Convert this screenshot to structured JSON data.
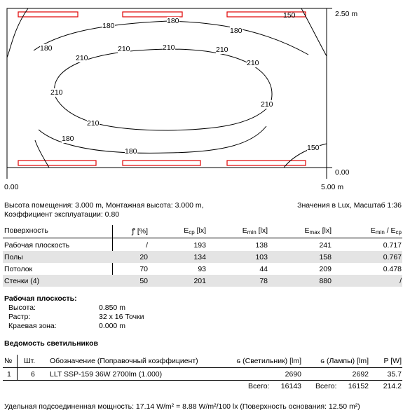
{
  "plan": {
    "axis_x_start": "0.00",
    "axis_x_end": "5.00 m",
    "axis_y_top": "2.50 m",
    "axis_y_bottom": "0.00",
    "contour_labels": [
      "150",
      "180",
      "180",
      "180",
      "180",
      "210",
      "210",
      "210",
      "210",
      "210",
      "210",
      "210",
      "210",
      "180",
      "180",
      "150"
    ]
  },
  "info": {
    "room_line1": "Высота помещения: 3.000 m, Монтажная высота: 3.000 m,",
    "room_line2": "Коэффициент эксплуатации: 0.80",
    "units_note": "Значения в Lux, Масштаб 1:36"
  },
  "surfaces": {
    "headers": {
      "surface": "Поверхность",
      "rho": "ꝭ [%]",
      "eavg": "E",
      "eavg_sub": "ср",
      "eavg_unit": "[lx]",
      "emin": "E",
      "emin_sub": "min",
      "emin_unit": "[lx]",
      "emax": "E",
      "emax_sub": "max",
      "emax_unit": "[lx]",
      "ratio_a": "E",
      "ratio_a_sub": "min",
      "ratio_sep": "/ E",
      "ratio_b_sub": "ср"
    },
    "rows": [
      {
        "name": "Рабочая плоскость",
        "rho": "/",
        "eavg": "193",
        "emin": "138",
        "emax": "241",
        "ratio": "0.717"
      },
      {
        "name": "Полы",
        "rho": "20",
        "eavg": "134",
        "emin": "103",
        "emax": "158",
        "ratio": "0.767"
      },
      {
        "name": "Потолок",
        "rho": "70",
        "eavg": "93",
        "emin": "44",
        "emax": "209",
        "ratio": "0.478"
      },
      {
        "name": "Стенки (4)",
        "rho": "50",
        "eavg": "201",
        "emin": "78",
        "emax": "880",
        "ratio": "/"
      }
    ]
  },
  "workplane": {
    "title": "Рабочая плоскость:",
    "height_label": "Высота:",
    "height_value": "0.850 m",
    "grid_label": "Растр:",
    "grid_value": "32 x 16 Точки",
    "border_label": "Краевая зона:",
    "border_value": "0.000 m"
  },
  "luminaires": {
    "title": "Ведомость светильников",
    "headers": {
      "no": "№",
      "qty": "Шт.",
      "desc": "Обозначение (Поправочный коэффициент)",
      "flux_lum": "ɢ (Светильник) [lm]",
      "flux_lamp": "ɢ (Лампы) [lm]",
      "power": "P [W]"
    },
    "row": {
      "no": "1",
      "qty": "6",
      "desc": "LLT SSP-159 36W 2700lm (1.000)",
      "flux_lum": "2690",
      "flux_lamp": "2692",
      "power": "35.7"
    },
    "total_label_1": "Всего:",
    "total_flux_lum": "16143",
    "total_label_2": "Всего:",
    "total_flux_lamp": "16152",
    "total_power": "214.2"
  },
  "footer": "Удельная подсоединенная мощность: 17.14 W/m² = 8.88 W/m²/100  lx (Поверхность основания: 12.50 m²)"
}
